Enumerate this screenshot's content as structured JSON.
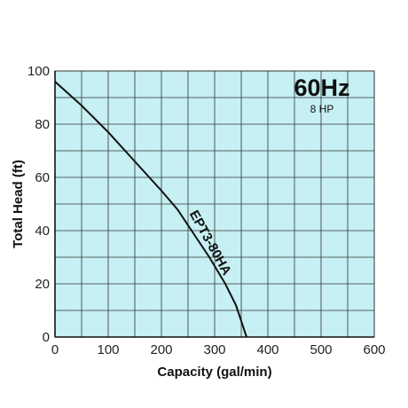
{
  "chart_data": {
    "type": "line",
    "xlabel": "Capacity (gal/min)",
    "ylabel": "Total Head (ft)",
    "xlim": [
      0,
      600
    ],
    "ylim": [
      0,
      100
    ],
    "x_ticks": [
      0,
      100,
      200,
      300,
      400,
      500,
      600
    ],
    "y_ticks": [
      0,
      20,
      40,
      60,
      80,
      100
    ],
    "x_minor_step": 50,
    "y_minor_step": 10,
    "grid": true,
    "annotations": {
      "frequency": "60Hz",
      "horsepower": "8 HP"
    },
    "series": [
      {
        "name": "EPT3-80HA",
        "x": [
          0,
          50,
          100,
          150,
          200,
          230,
          260,
          290,
          320,
          340,
          355,
          360
        ],
        "y": [
          96,
          87,
          77,
          66,
          55,
          48,
          39,
          30,
          20,
          12,
          3,
          0
        ]
      }
    ],
    "colors": {
      "plot_background": "#c6f0f3",
      "grid": "#333333",
      "curve": "#111111"
    }
  }
}
